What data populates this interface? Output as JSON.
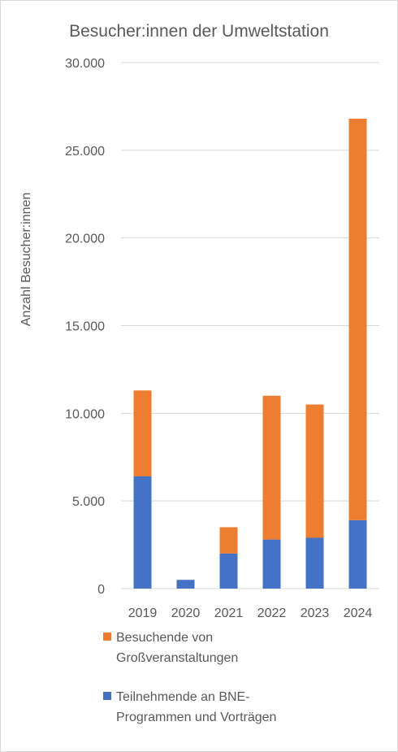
{
  "chart_data": {
    "type": "bar",
    "stacked": true,
    "title": "Besucher:innen der Umweltstation",
    "xlabel": "",
    "ylabel": "Anzahl Besucher:innen",
    "categories": [
      "2019",
      "2020",
      "2021",
      "2022",
      "2023",
      "2024"
    ],
    "ylim": [
      0,
      30000
    ],
    "yticks": [
      {
        "value": 0,
        "label": "0"
      },
      {
        "value": 5000,
        "label": "5.000"
      },
      {
        "value": 10000,
        "label": "10.000"
      },
      {
        "value": 15000,
        "label": "15.000"
      },
      {
        "value": 20000,
        "label": "20.000"
      },
      {
        "value": 25000,
        "label": "25.000"
      },
      {
        "value": 30000,
        "label": "30.000"
      }
    ],
    "grid": true,
    "legend_position": "bottom",
    "series": [
      {
        "name": "Teilnehmende an BNE-Programmen und Vorträgen",
        "legend_lines": [
          "Teilnehmende an BNE-",
          "Programmen und Vorträgen"
        ],
        "color": "#4472c4",
        "values": [
          6400,
          500,
          2000,
          2800,
          2900,
          3900
        ]
      },
      {
        "name": "Besuchende von Großveranstaltungen",
        "legend_lines": [
          "Besuchende von",
          "Großveranstaltungen"
        ],
        "color": "#ed7d31",
        "values": [
          4900,
          0,
          1500,
          8200,
          7600,
          22900
        ]
      }
    ]
  }
}
